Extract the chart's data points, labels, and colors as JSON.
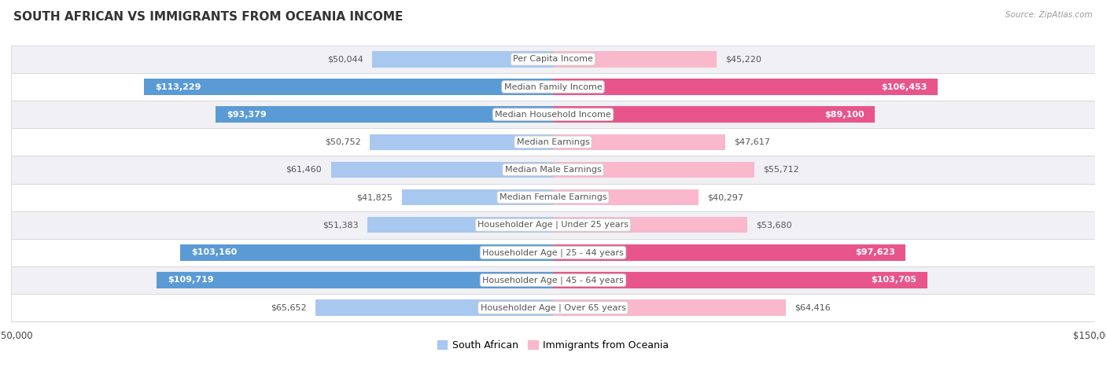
{
  "title": "SOUTH AFRICAN VS IMMIGRANTS FROM OCEANIA INCOME",
  "source": "Source: ZipAtlas.com",
  "categories": [
    "Per Capita Income",
    "Median Family Income",
    "Median Household Income",
    "Median Earnings",
    "Median Male Earnings",
    "Median Female Earnings",
    "Householder Age | Under 25 years",
    "Householder Age | 25 - 44 years",
    "Householder Age | 45 - 64 years",
    "Householder Age | Over 65 years"
  ],
  "south_african": [
    50044,
    113229,
    93379,
    50752,
    61460,
    41825,
    51383,
    103160,
    109719,
    65652
  ],
  "oceania": [
    45220,
    106453,
    89100,
    47617,
    55712,
    40297,
    53680,
    97623,
    103705,
    64416
  ],
  "south_african_labels": [
    "$50,044",
    "$113,229",
    "$93,379",
    "$50,752",
    "$61,460",
    "$41,825",
    "$51,383",
    "$103,160",
    "$109,719",
    "$65,652"
  ],
  "oceania_labels": [
    "$45,220",
    "$106,453",
    "$89,100",
    "$47,617",
    "$55,712",
    "$40,297",
    "$53,680",
    "$97,623",
    "$103,705",
    "$64,416"
  ],
  "sa_label_inside": [
    false,
    true,
    true,
    false,
    false,
    false,
    false,
    true,
    true,
    false
  ],
  "oc_label_inside": [
    false,
    true,
    true,
    false,
    false,
    false,
    false,
    true,
    true,
    false
  ],
  "max_value": 150000,
  "bar_color_sa_light": "#a8c8f0",
  "bar_color_sa_dark": "#5b9bd5",
  "bar_color_oc_light": "#f9b8cc",
  "bar_color_oc_dark": "#e8558a",
  "sa_dark": [
    false,
    true,
    true,
    false,
    false,
    false,
    false,
    true,
    true,
    false
  ],
  "oc_dark": [
    false,
    true,
    true,
    false,
    false,
    false,
    false,
    true,
    true,
    false
  ],
  "label_color_inside": "#ffffff",
  "label_color_outside": "#555555",
  "row_bg_even": "#f0f0f5",
  "row_bg_odd": "#ffffff",
  "row_border": "#d0d0d8",
  "center_label_bg": "#ffffff",
  "center_label_border": "#cccccc",
  "center_label_color": "#555555",
  "title_fontsize": 11,
  "label_fontsize": 8,
  "category_fontsize": 8,
  "legend_fontsize": 9,
  "axis_fontsize": 8.5,
  "inside_label_threshold": 65000
}
